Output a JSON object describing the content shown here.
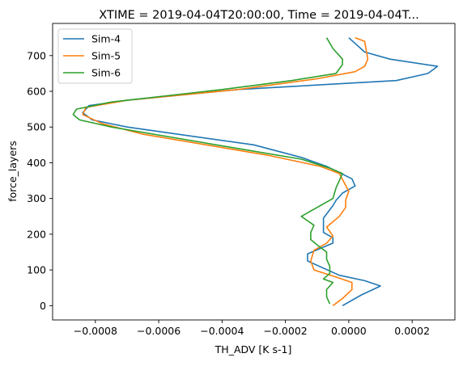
{
  "chart_data": {
    "type": "line",
    "title": "XTIME = 2019-04-04T20:00:00, Time = 2019-04-04T...",
    "xlabel": "TH_ADV [K s-1]",
    "ylabel": "force_layers",
    "xlim": [
      -0.000935,
      0.000335
    ],
    "ylim": [
      -40,
      790
    ],
    "xticks": [
      -0.0008,
      -0.0006,
      -0.0004,
      -0.0002,
      0.0,
      0.0002
    ],
    "xtick_labels": [
      "−0.0008",
      "−0.0006",
      "−0.0004",
      "−0.0002",
      "0.0000",
      "0.0002"
    ],
    "yticks": [
      0,
      100,
      200,
      300,
      400,
      500,
      600,
      700
    ],
    "ytick_labels": [
      "0",
      "100",
      "200",
      "300",
      "400",
      "500",
      "600",
      "700"
    ],
    "grid": false,
    "legend_position": "top-left",
    "series": [
      {
        "name": "Sim-4",
        "color": "#1f77b4",
        "points": [
          [
            -2e-05,
            0
          ],
          [
            4e-05,
            30
          ],
          [
            0.0001,
            55
          ],
          [
            5e-05,
            70
          ],
          [
            -3e-05,
            85
          ],
          [
            -0.00013,
            125
          ],
          [
            -0.00013,
            145
          ],
          [
            -5e-05,
            175
          ],
          [
            -5e-05,
            190
          ],
          [
            -8e-05,
            205
          ],
          [
            -8e-05,
            245
          ],
          [
            -5e-05,
            280
          ],
          [
            -4e-05,
            295
          ],
          [
            -2e-05,
            315
          ],
          [
            2e-05,
            335
          ],
          [
            1e-05,
            355
          ],
          [
            -7e-05,
            390
          ],
          [
            -0.00015,
            415
          ],
          [
            -0.0003,
            450
          ],
          [
            -0.0005,
            475
          ],
          [
            -0.0007,
            500
          ],
          [
            -0.00081,
            520
          ],
          [
            -0.00084,
            540
          ],
          [
            -0.00082,
            560
          ],
          [
            -0.0007,
            575
          ],
          [
            -0.00035,
            605
          ],
          [
            0.00015,
            630
          ],
          [
            0.00025,
            650
          ],
          [
            0.00028,
            670
          ],
          [
            0.00013,
            690
          ],
          [
            5e-05,
            710
          ],
          [
            0.0,
            750
          ]
        ]
      },
      {
        "name": "Sim-5",
        "color": "#ff7f0e",
        "points": [
          [
            -5e-05,
            0
          ],
          [
            -2e-05,
            20
          ],
          [
            1e-05,
            45
          ],
          [
            1e-05,
            65
          ],
          [
            -4e-05,
            80
          ],
          [
            -0.00011,
            100
          ],
          [
            -0.00012,
            125
          ],
          [
            -0.00011,
            155
          ],
          [
            -7e-05,
            175
          ],
          [
            -5e-05,
            195
          ],
          [
            -7e-05,
            220
          ],
          [
            -3e-05,
            250
          ],
          [
            -1e-05,
            275
          ],
          [
            -1e-05,
            295
          ],
          [
            0.0,
            320
          ],
          [
            -3e-05,
            370
          ],
          [
            -9e-05,
            390
          ],
          [
            -0.00025,
            420
          ],
          [
            -0.00045,
            450
          ],
          [
            -0.00065,
            480
          ],
          [
            -0.00078,
            510
          ],
          [
            -0.00084,
            535
          ],
          [
            -0.00083,
            555
          ],
          [
            -0.0007,
            575
          ],
          [
            -0.00035,
            605
          ],
          [
            -0.0001,
            635
          ],
          [
            2e-05,
            655
          ],
          [
            5e-05,
            670
          ],
          [
            6e-05,
            690
          ],
          [
            5e-05,
            740
          ],
          [
            2e-05,
            750
          ]
        ]
      },
      {
        "name": "Sim-6",
        "color": "#2ca02c",
        "points": [
          [
            -6e-05,
            5
          ],
          [
            -7e-05,
            25
          ],
          [
            -7e-05,
            45
          ],
          [
            -5e-05,
            65
          ],
          [
            -8e-05,
            75
          ],
          [
            -6e-05,
            90
          ],
          [
            -6e-05,
            110
          ],
          [
            -7e-05,
            130
          ],
          [
            -7e-05,
            150
          ],
          [
            -0.0001,
            170
          ],
          [
            -0.00012,
            185
          ],
          [
            -0.00012,
            205
          ],
          [
            -0.00011,
            225
          ],
          [
            -0.00015,
            250
          ],
          [
            -0.00011,
            270
          ],
          [
            -5e-05,
            300
          ],
          [
            -4e-05,
            330
          ],
          [
            -2e-05,
            370
          ],
          [
            -6e-05,
            385
          ],
          [
            -0.00015,
            410
          ],
          [
            -0.00035,
            440
          ],
          [
            -0.00055,
            470
          ],
          [
            -0.00075,
            500
          ],
          [
            -0.00085,
            520
          ],
          [
            -0.00087,
            535
          ],
          [
            -0.00086,
            550
          ],
          [
            -0.00075,
            570
          ],
          [
            -0.0004,
            605
          ],
          [
            -0.00018,
            630
          ],
          [
            -4e-05,
            650
          ],
          [
            -2e-05,
            675
          ],
          [
            -2e-05,
            690
          ],
          [
            -5e-05,
            720
          ],
          [
            -7e-05,
            750
          ]
        ]
      }
    ]
  }
}
